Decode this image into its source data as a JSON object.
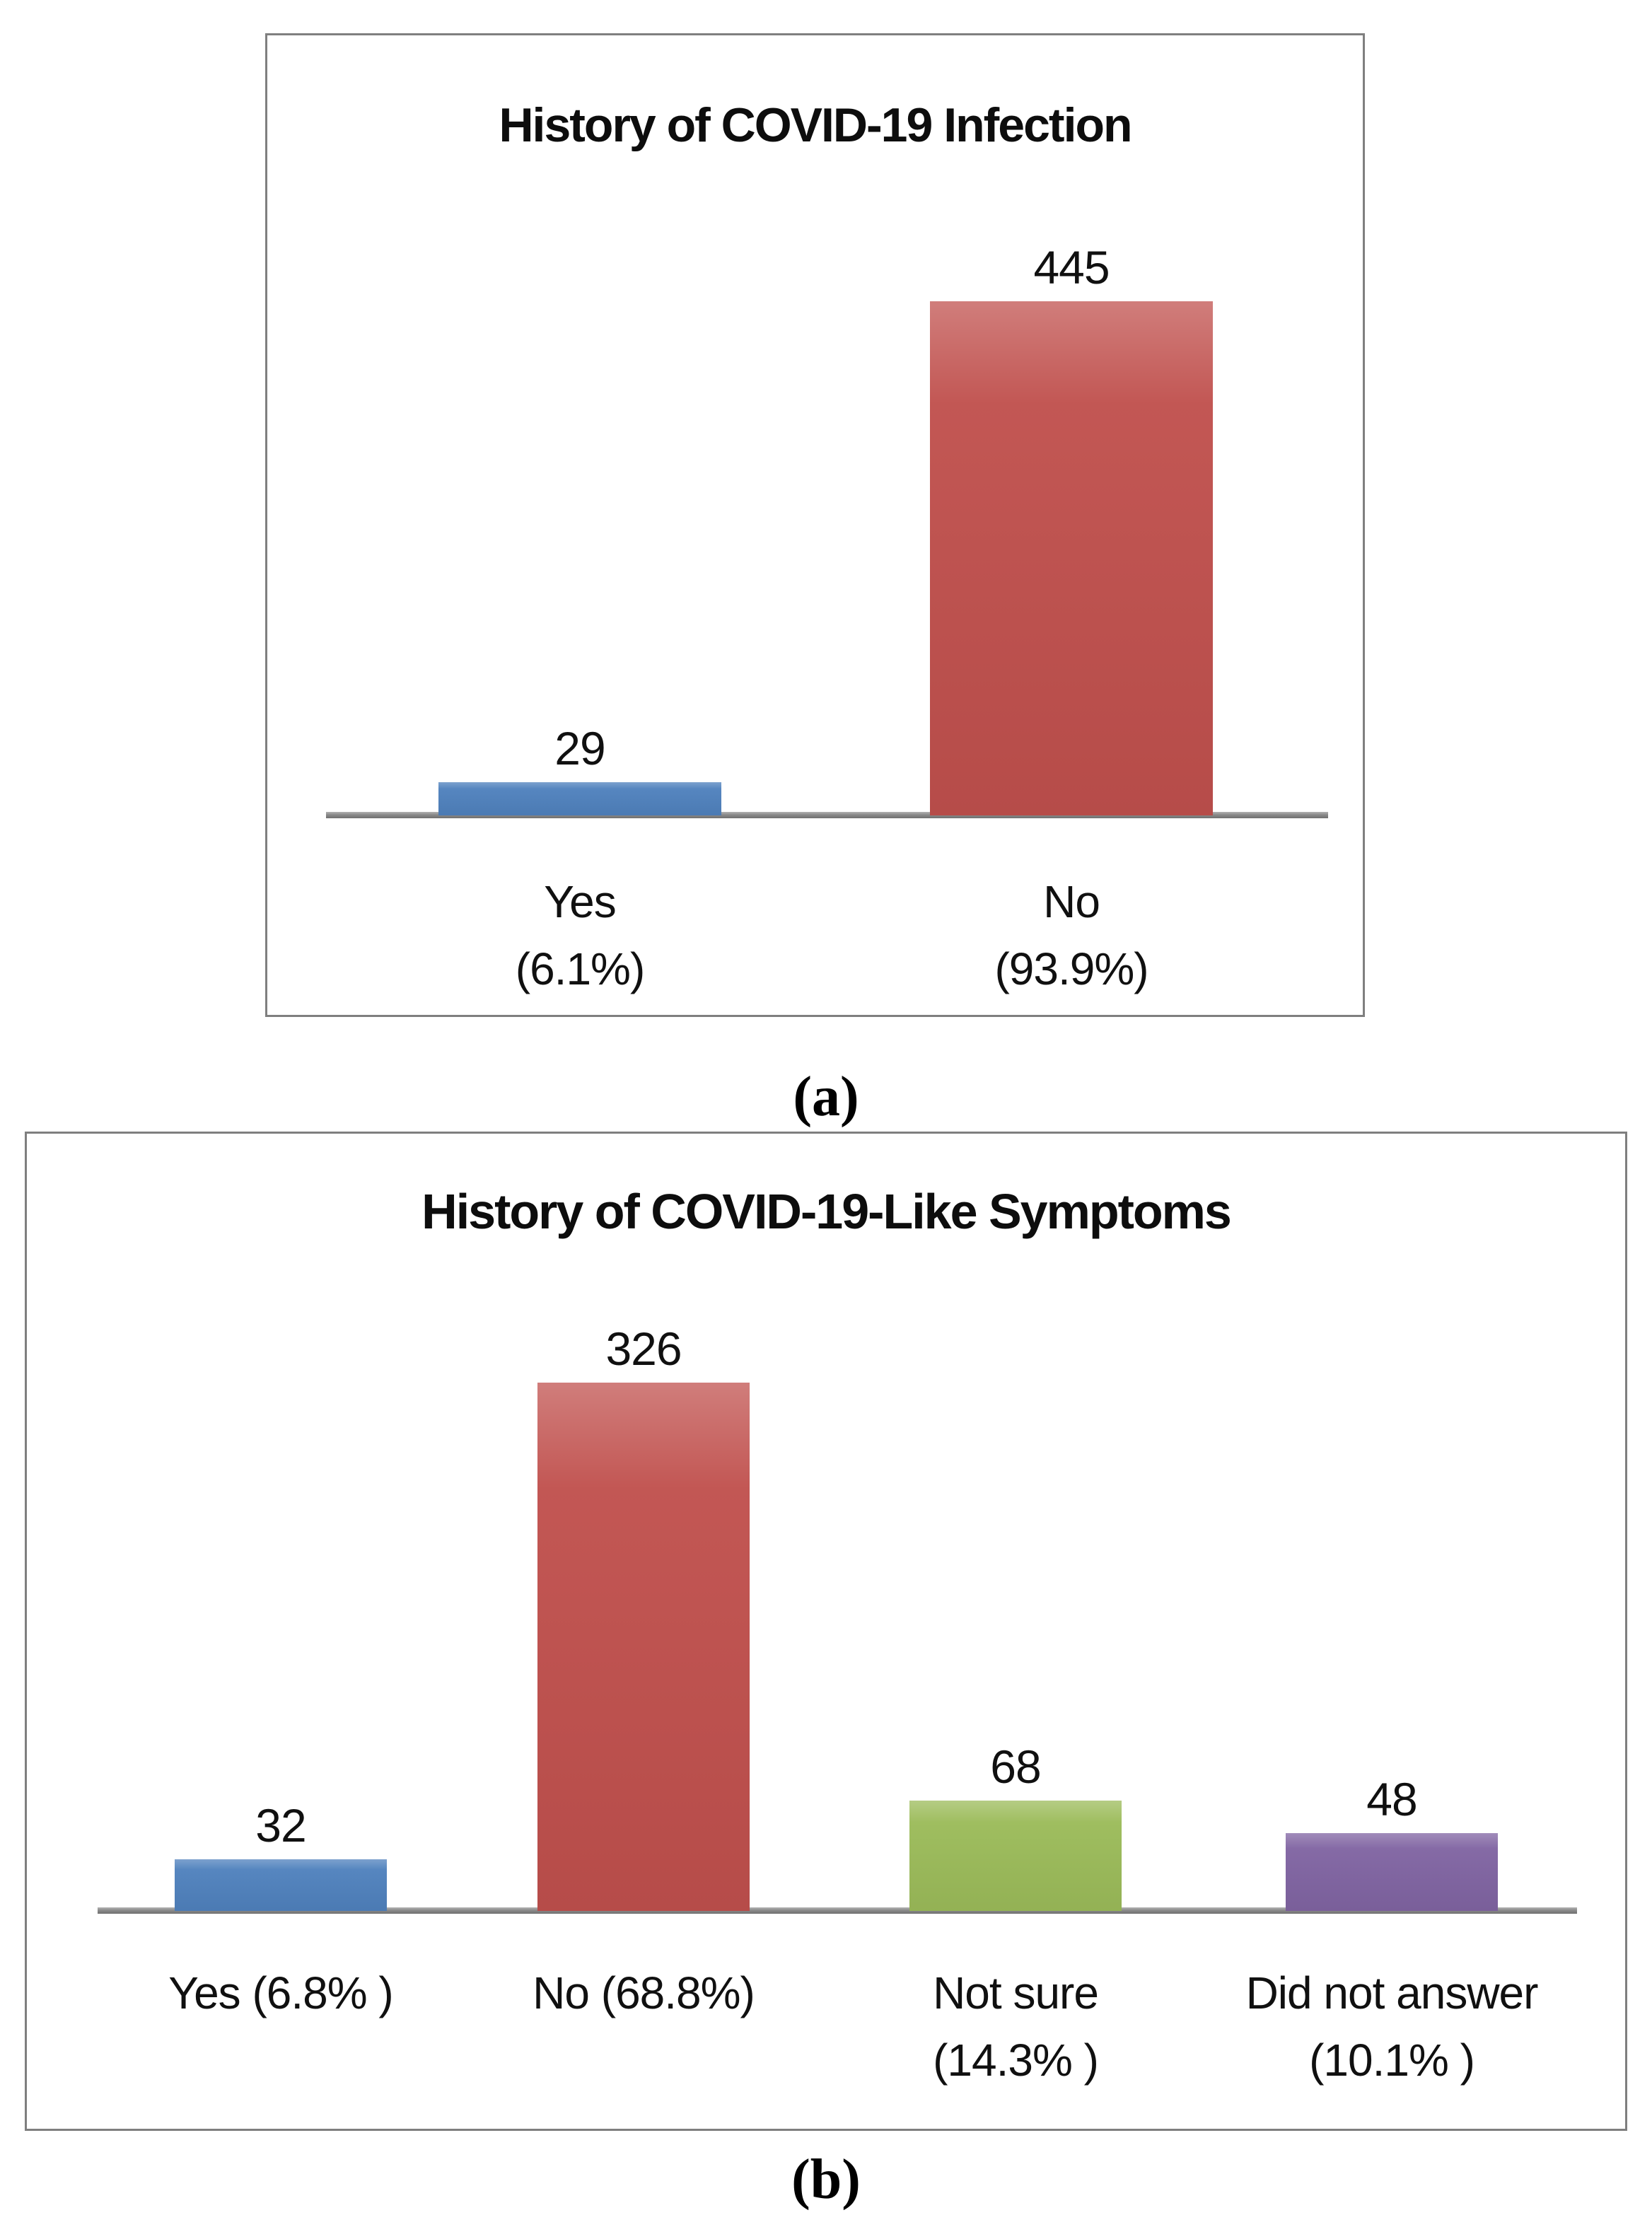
{
  "figure": {
    "background": "#ffffff",
    "panel_border_color": "#7f7f7f",
    "axis_color": "#8b8b8b",
    "captions": [
      "(a)",
      "(b)"
    ]
  },
  "chart_data": [
    {
      "type": "bar",
      "title": "History of COVID-19 Infection",
      "categories": [
        "Yes (6.1%)",
        "No (93.9%)"
      ],
      "values": [
        29,
        445
      ],
      "data_labels": [
        "29",
        "445"
      ],
      "tick_label_lines": [
        [
          "Yes",
          "(6.1%)"
        ],
        [
          "No",
          "(93.9%)"
        ]
      ],
      "percentages": [
        6.1,
        93.9
      ],
      "bar_colors": [
        "#4F81BD",
        "#C0504D"
      ],
      "xlabel": "",
      "ylabel": "",
      "ylim": [
        0,
        500
      ],
      "grid": false,
      "legend": false,
      "y_axis_shown": false
    },
    {
      "type": "bar",
      "title": "History of COVID-19-Like Symptoms",
      "categories": [
        "Yes (6.8% )",
        "No (68.8%)",
        "Not sure (14.3% )",
        "Did not answer (10.1% )"
      ],
      "values": [
        32,
        326,
        68,
        48
      ],
      "data_labels": [
        "32",
        "326",
        "68",
        "48"
      ],
      "tick_label_lines": [
        [
          "Yes (6.8% )"
        ],
        [
          "No (68.8%)"
        ],
        [
          "Not sure",
          "(14.3% )"
        ],
        [
          "Did not answer",
          "(10.1% )"
        ]
      ],
      "percentages": [
        6.8,
        68.8,
        14.3,
        10.1
      ],
      "bar_colors": [
        "#4F81BD",
        "#C0504D",
        "#9BBB59",
        "#8064A2"
      ],
      "xlabel": "",
      "ylabel": "",
      "ylim": [
        0,
        350
      ],
      "grid": false,
      "legend": false,
      "y_axis_shown": false
    }
  ]
}
